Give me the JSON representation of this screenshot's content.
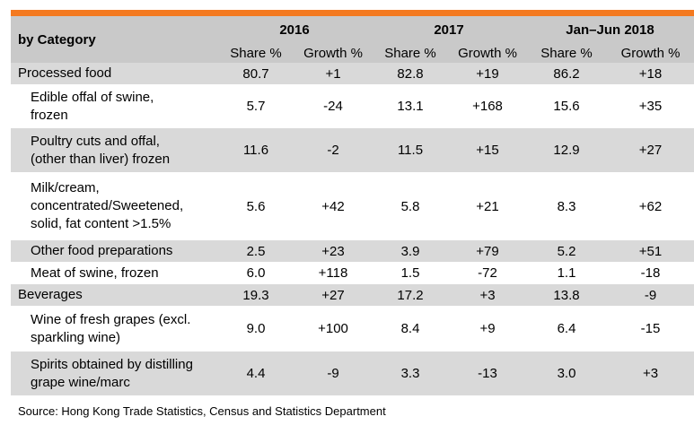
{
  "header": {
    "category_label": "by Category",
    "periods": [
      "2016",
      "2017",
      "Jan–Jun 2018"
    ],
    "share_label": "Share %",
    "growth_label": "Growth %"
  },
  "rows": [
    {
      "label": "Processed food",
      "type": "group",
      "values": [
        "80.7",
        "+1",
        "82.8",
        "+19",
        "86.2",
        "+18"
      ]
    },
    {
      "label_lines": [
        "Edible offal of swine,",
        "frozen"
      ],
      "type": "sub",
      "values": [
        "5.7",
        "-24",
        "13.1",
        "+168",
        "15.6",
        "+35"
      ]
    },
    {
      "label_lines": [
        "Poultry cuts and offal,",
        "(other than liver) frozen"
      ],
      "type": "sub",
      "values": [
        "11.6",
        "-2",
        "11.5",
        "+15",
        "12.9",
        "+27"
      ]
    },
    {
      "label_lines": [
        "Milk/cream,",
        "concentrated/Sweetened,",
        "solid, fat content >1.5%"
      ],
      "type": "sub",
      "values": [
        "5.6",
        "+42",
        "5.8",
        "+21",
        "8.3",
        "+62"
      ]
    },
    {
      "label": "Other food preparations",
      "type": "sub",
      "values": [
        "2.5",
        "+23",
        "3.9",
        "+79",
        "5.2",
        "+51"
      ]
    },
    {
      "label": "Meat of swine, frozen",
      "type": "sub",
      "values": [
        "6.0",
        "+118",
        "1.5",
        "-72",
        "1.1",
        "-18"
      ]
    },
    {
      "label": "Beverages",
      "type": "group",
      "values": [
        "19.3",
        "+27",
        "17.2",
        "+3",
        "13.8",
        "-9"
      ]
    },
    {
      "label_lines": [
        "Wine of fresh grapes (excl.",
        "sparkling wine)"
      ],
      "type": "sub",
      "values": [
        "9.0",
        "+100",
        "8.4",
        "+9",
        "6.4",
        "-15"
      ]
    },
    {
      "label_lines": [
        "Spirits obtained by distilling",
        "grape wine/marc"
      ],
      "type": "sub",
      "values": [
        "4.4",
        "-9",
        "3.3",
        "-13",
        "3.0",
        "+3"
      ]
    }
  ],
  "source": "Source: Hong Kong Trade Statistics, Census and Statistics Department",
  "colors": {
    "accent": "#f47a20",
    "header_bg": "#c9c9c9",
    "band_bg": "#d9d9d9"
  }
}
